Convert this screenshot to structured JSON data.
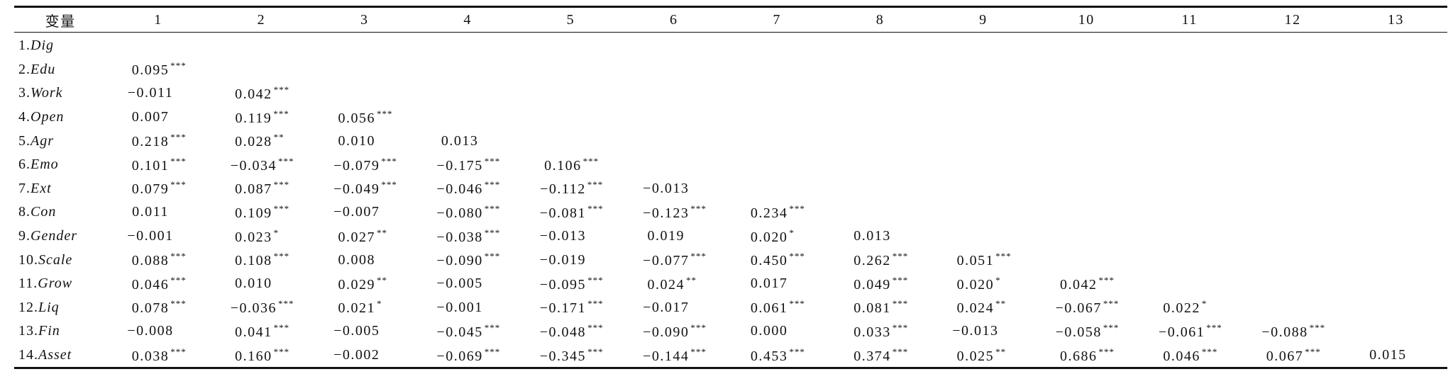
{
  "table": {
    "header": [
      "变量",
      "1",
      "2",
      "3",
      "4",
      "5",
      "6",
      "7",
      "8",
      "9",
      "10",
      "11",
      "12",
      "13"
    ],
    "rows": [
      {
        "num": "1.",
        "var": "Dig",
        "cells": []
      },
      {
        "num": "2.",
        "var": "Edu",
        "cells": [
          [
            "0.095",
            "***"
          ]
        ]
      },
      {
        "num": "3.",
        "var": "Work",
        "cells": [
          [
            "−0.011",
            ""
          ],
          [
            "0.042",
            "***"
          ]
        ]
      },
      {
        "num": "4.",
        "var": "Open",
        "cells": [
          [
            "0.007",
            ""
          ],
          [
            "0.119",
            "***"
          ],
          [
            "0.056",
            "***"
          ]
        ]
      },
      {
        "num": "5.",
        "var": "Agr",
        "cells": [
          [
            "0.218",
            "***"
          ],
          [
            "0.028",
            "**"
          ],
          [
            "0.010",
            ""
          ],
          [
            "0.013",
            ""
          ]
        ]
      },
      {
        "num": "6.",
        "var": "Emo",
        "cells": [
          [
            "0.101",
            "***"
          ],
          [
            "−0.034",
            "***"
          ],
          [
            "−0.079",
            "***"
          ],
          [
            "−0.175",
            "***"
          ],
          [
            "0.106",
            "***"
          ]
        ]
      },
      {
        "num": "7.",
        "var": "Ext",
        "cells": [
          [
            "0.079",
            "***"
          ],
          [
            "0.087",
            "***"
          ],
          [
            "−0.049",
            "***"
          ],
          [
            "−0.046",
            "***"
          ],
          [
            "−0.112",
            "***"
          ],
          [
            "−0.013",
            ""
          ]
        ]
      },
      {
        "num": "8.",
        "var": "Con",
        "cells": [
          [
            "0.011",
            ""
          ],
          [
            "0.109",
            "***"
          ],
          [
            "−0.007",
            ""
          ],
          [
            "−0.080",
            "***"
          ],
          [
            "−0.081",
            "***"
          ],
          [
            "−0.123",
            "***"
          ],
          [
            "0.234",
            "***"
          ]
        ]
      },
      {
        "num": "9.",
        "var": "Gender",
        "cells": [
          [
            "−0.001",
            ""
          ],
          [
            "0.023",
            "*"
          ],
          [
            "0.027",
            "**"
          ],
          [
            "−0.038",
            "***"
          ],
          [
            "−0.013",
            ""
          ],
          [
            "0.019",
            ""
          ],
          [
            "0.020",
            "*"
          ],
          [
            "0.013",
            ""
          ]
        ]
      },
      {
        "num": "10.",
        "var": "Scale",
        "cells": [
          [
            "0.088",
            "***"
          ],
          [
            "0.108",
            "***"
          ],
          [
            "0.008",
            ""
          ],
          [
            "−0.090",
            "***"
          ],
          [
            "−0.019",
            ""
          ],
          [
            "−0.077",
            "***"
          ],
          [
            "0.450",
            "***"
          ],
          [
            "0.262",
            "***"
          ],
          [
            "0.051",
            "***"
          ]
        ]
      },
      {
        "num": "11.",
        "var": "Grow",
        "cells": [
          [
            "0.046",
            "***"
          ],
          [
            "0.010",
            ""
          ],
          [
            "0.029",
            "**"
          ],
          [
            "−0.005",
            ""
          ],
          [
            "−0.095",
            "***"
          ],
          [
            "0.024",
            "**"
          ],
          [
            "0.017",
            ""
          ],
          [
            "0.049",
            "***"
          ],
          [
            "0.020",
            "*"
          ],
          [
            "0.042",
            "***"
          ]
        ]
      },
      {
        "num": "12.",
        "var": "Liq",
        "cells": [
          [
            "0.078",
            "***"
          ],
          [
            "−0.036",
            "***"
          ],
          [
            "0.021",
            "*"
          ],
          [
            "−0.001",
            ""
          ],
          [
            "−0.171",
            "***"
          ],
          [
            "−0.017",
            ""
          ],
          [
            "0.061",
            "***"
          ],
          [
            "0.081",
            "***"
          ],
          [
            "0.024",
            "**"
          ],
          [
            "−0.067",
            "***"
          ],
          [
            "0.022",
            "*"
          ]
        ]
      },
      {
        "num": "13.",
        "var": "Fin",
        "cells": [
          [
            "−0.008",
            ""
          ],
          [
            "0.041",
            "***"
          ],
          [
            "−0.005",
            ""
          ],
          [
            "−0.045",
            "***"
          ],
          [
            "−0.048",
            "***"
          ],
          [
            "−0.090",
            "***"
          ],
          [
            "0.000",
            ""
          ],
          [
            "0.033",
            "***"
          ],
          [
            "−0.013",
            ""
          ],
          [
            "−0.058",
            "***"
          ],
          [
            "−0.061",
            "***"
          ],
          [
            "−0.088",
            "***"
          ]
        ]
      },
      {
        "num": "14.",
        "var": "Asset",
        "cells": [
          [
            "0.038",
            "***"
          ],
          [
            "0.160",
            "***"
          ],
          [
            "−0.002",
            ""
          ],
          [
            "−0.069",
            "***"
          ],
          [
            "−0.345",
            "***"
          ],
          [
            "−0.144",
            "***"
          ],
          [
            "0.453",
            "***"
          ],
          [
            "0.374",
            "***"
          ],
          [
            "0.025",
            "**"
          ],
          [
            "0.686",
            "***"
          ],
          [
            "0.046",
            "***"
          ],
          [
            "0.067",
            "***"
          ],
          [
            "0.015",
            ""
          ]
        ]
      }
    ]
  }
}
